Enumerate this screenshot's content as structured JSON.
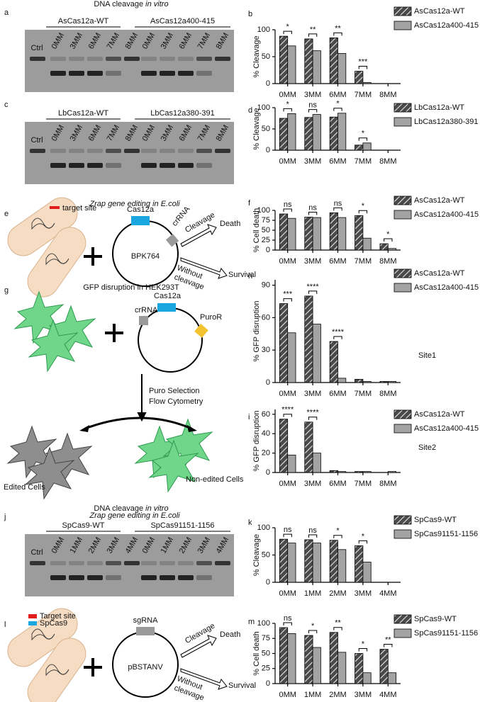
{
  "chart_data": [
    {
      "type": "bar",
      "panel_label": "b",
      "y_label": "% Cleavage",
      "categories": [
        "0MM",
        "3MM",
        "6MM",
        "7MM",
        "8MM"
      ],
      "series": [
        {
          "name": "AsCas12a-WT",
          "color": "#4a4a4a",
          "hatch": true,
          "values": [
            88,
            83,
            85,
            23,
            0
          ]
        },
        {
          "name": "AsCas12a400-415",
          "color": "#a3a3a3",
          "values": [
            70,
            61,
            56,
            2,
            0
          ]
        }
      ],
      "ylim": [
        0,
        100
      ],
      "yticks": [
        0,
        50,
        100
      ],
      "significance": [
        "*",
        "**",
        "**",
        "***",
        null
      ]
    },
    {
      "type": "bar",
      "panel_label": "d",
      "y_label": "% Cleavage",
      "categories": [
        "0MM",
        "3MM",
        "6MM",
        "7MM",
        "8MM"
      ],
      "series": [
        {
          "name": "LbCas12a-WT",
          "color": "#4a4a4a",
          "hatch": true,
          "values": [
            75,
            77,
            78,
            12,
            0
          ]
        },
        {
          "name": "LbCas12a380-391",
          "color": "#a3a3a3",
          "values": [
            86,
            84,
            87,
            17,
            0
          ]
        }
      ],
      "ylim": [
        0,
        100
      ],
      "yticks": [
        0,
        50,
        100
      ],
      "significance": [
        "*",
        "ns",
        "*",
        "*",
        null
      ]
    },
    {
      "type": "bar",
      "panel_label": "f",
      "y_label": "% Cell death",
      "categories": [
        "0MM",
        "3MM",
        "6MM",
        "7MM",
        "8MM"
      ],
      "series": [
        {
          "name": "AsCas12a-WT",
          "color": "#4a4a4a",
          "hatch": true,
          "values": [
            91,
            83,
            94,
            87,
            16
          ]
        },
        {
          "name": "AsCas12a400-415",
          "color": "#a3a3a3",
          "values": [
            80,
            82,
            82,
            30,
            4
          ]
        }
      ],
      "ylim": [
        0,
        100
      ],
      "yticks": [
        0,
        25,
        50,
        75,
        100
      ],
      "significance": [
        "ns",
        "ns",
        "ns",
        "*",
        "*"
      ]
    },
    {
      "type": "bar",
      "panel_label": "h",
      "y_label": "% GFP disruption",
      "annotation": "Site1",
      "categories": [
        "0MM",
        "3MM",
        "6MM",
        "7MM",
        "8MM"
      ],
      "series": [
        {
          "name": "AsCas12a-WT",
          "color": "#4a4a4a",
          "hatch": true,
          "values": [
            73,
            80,
            38,
            3,
            1
          ]
        },
        {
          "name": "AsCas12a400-415",
          "color": "#a3a3a3",
          "values": [
            46,
            54,
            4,
            1,
            1
          ]
        }
      ],
      "ylim": [
        0,
        95
      ],
      "yticks": [
        0,
        30,
        60,
        90
      ],
      "significance": [
        "***",
        "****",
        "****",
        null,
        null
      ]
    },
    {
      "type": "bar",
      "panel_label": "i",
      "y_label": "% GFP disruption",
      "annotation": "Site2",
      "categories": [
        "0MM",
        "3MM",
        "6MM",
        "7MM",
        "8MM"
      ],
      "series": [
        {
          "name": "AsCas12a-WT",
          "color": "#4a4a4a",
          "hatch": true,
          "values": [
            55,
            52,
            2,
            1,
            0
          ]
        },
        {
          "name": "AsCas12a400-415",
          "color": "#a3a3a3",
          "values": [
            18,
            20,
            1,
            1,
            1
          ]
        }
      ],
      "ylim": [
        0,
        65
      ],
      "yticks": [
        0,
        20,
        40,
        60
      ],
      "significance": [
        "****",
        "****",
        null,
        null,
        null
      ]
    },
    {
      "type": "bar",
      "panel_label": "k",
      "y_label": "% Cleavage",
      "categories": [
        "0MM",
        "1MM",
        "2MM",
        "3MM",
        "4MM"
      ],
      "series": [
        {
          "name": "SpCas9-WT",
          "color": "#4a4a4a",
          "hatch": true,
          "values": [
            79,
            78,
            77,
            67,
            0
          ]
        },
        {
          "name": "SpCas91151-1156",
          "color": "#a3a3a3",
          "values": [
            72,
            72,
            60,
            37,
            0
          ]
        }
      ],
      "ylim": [
        0,
        100
      ],
      "yticks": [
        0,
        50,
        100
      ],
      "significance": [
        "ns",
        "ns",
        "*",
        "*",
        null
      ]
    },
    {
      "type": "bar",
      "panel_label": "m",
      "y_label": "% Cell death",
      "categories": [
        "0MM",
        "1MM",
        "2MM",
        "3MM",
        "4MM"
      ],
      "series": [
        {
          "name": "SpCas9-WT",
          "color": "#4a4a4a",
          "hatch": true,
          "values": [
            93,
            80,
            85,
            50,
            57
          ]
        },
        {
          "name": "SpCas91151-1156",
          "color": "#a3a3a3",
          "values": [
            83,
            60,
            52,
            18,
            18
          ]
        }
      ],
      "ylim": [
        0,
        100
      ],
      "yticks": [
        0,
        25,
        50,
        75,
        100
      ],
      "significance": [
        "ns",
        "*",
        "**",
        "*",
        "**"
      ]
    }
  ],
  "diagrams": {
    "a": {
      "letter": "a",
      "title": "DNA cleavage ",
      "title_italic": "in vitro",
      "groups": [
        "AsCas12a-WT",
        "AsCas12a400-415"
      ],
      "ctrl": "Ctrl",
      "lanes": [
        "0MM",
        "3MM",
        "6MM",
        "7MM",
        "8MM"
      ]
    },
    "c": {
      "letter": "c",
      "groups": [
        "LbCas12a-WT",
        "LbCas12a380-391"
      ],
      "ctrl": "Ctrl",
      "lanes": [
        "0MM",
        "3MM",
        "6MM",
        "7MM",
        "8MM"
      ]
    },
    "e": {
      "letter": "e",
      "title": "Zrap gene editing in E.coli",
      "target": "target site",
      "protein": "Cas12a",
      "guide": "crRNA",
      "plasmid": "BPK764",
      "cleavage": "Cleavage",
      "death": "Death",
      "without": "Without",
      "without2": "cleavage",
      "survival": "Survival"
    },
    "g": {
      "letter": "g",
      "title": "GFP disruption in HEK293T",
      "guide": "crRNA",
      "protein": "Cas12a",
      "marker": "PuroR",
      "step1": "Puro Selection",
      "step2": "Flow Cytometry",
      "edited": "Edited Cells",
      "nonedited": "Non-edited Cells"
    },
    "j": {
      "letter": "j",
      "title": "DNA cleavage ",
      "title_italic": "in vitro",
      "groups": [
        "SpCas9-WT",
        "SpCas91151-1156"
      ],
      "ctrl": "Ctrl",
      "lanes": [
        "0MM",
        "1MM",
        "2MM",
        "3MM",
        "4MM"
      ]
    },
    "l": {
      "letter": "l",
      "title": "Zrap gene editing in E.coli",
      "target": "Target site",
      "protein": "SpCas9",
      "guide": "sgRNA",
      "plasmid": "pBSTANV",
      "cleavage": "Cleavage",
      "death": "Death",
      "without": "Without",
      "without2": "cleavage",
      "survival": "Survival"
    }
  }
}
